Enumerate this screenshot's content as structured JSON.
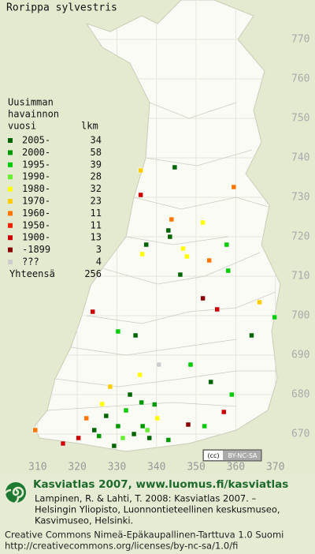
{
  "title": "Rorippa sylvestris",
  "legend": {
    "heading": [
      "Uusimman",
      "havainnon",
      "vuosi"
    ],
    "count_heading": "lkm",
    "rows": [
      {
        "label": "2005-",
        "count": 34,
        "color": "#006400"
      },
      {
        "label": "2000-",
        "count": 58,
        "color": "#009900"
      },
      {
        "label": "1995-",
        "count": 39,
        "color": "#00cc00"
      },
      {
        "label": "1990-",
        "count": 28,
        "color": "#66ee33"
      },
      {
        "label": "1980-",
        "count": 32,
        "color": "#ffff00"
      },
      {
        "label": "1970-",
        "count": 23,
        "color": "#ffcc00"
      },
      {
        "label": "1960-",
        "count": 11,
        "color": "#ff7700"
      },
      {
        "label": "1950-",
        "count": 11,
        "color": "#ee2200"
      },
      {
        "label": "1900-",
        "count": 13,
        "color": "#cc0000"
      },
      {
        "label": "-1899",
        "count": 3,
        "color": "#880000"
      },
      {
        "label": "???",
        "count": 4,
        "color": "#cccccc"
      }
    ],
    "total_label": "Yhteensä",
    "total": 256
  },
  "map": {
    "xlim": [
      300.5,
      380
    ],
    "ylim": [
      660,
      780
    ],
    "xticks": [
      310,
      320,
      330,
      340,
      350,
      360,
      370
    ],
    "yticks": [
      670,
      680,
      690,
      700,
      710,
      720,
      730,
      740,
      750,
      760,
      770
    ]
  },
  "points": [
    {
      "x": 344.6,
      "y": 737.6,
      "period": 0
    },
    {
      "x": 336,
      "y": 736.8,
      "period": 5
    },
    {
      "x": 359.5,
      "y": 732.6,
      "period": 6
    },
    {
      "x": 336,
      "y": 730.6,
      "period": 8
    },
    {
      "x": 343.8,
      "y": 724.4,
      "period": 6
    },
    {
      "x": 343,
      "y": 721.6,
      "period": 0
    },
    {
      "x": 343.4,
      "y": 720,
      "period": 0
    },
    {
      "x": 351.7,
      "y": 723.6,
      "period": 4
    },
    {
      "x": 357.7,
      "y": 718,
      "period": 2
    },
    {
      "x": 337.4,
      "y": 718,
      "period": 0
    },
    {
      "x": 336.4,
      "y": 715.6,
      "period": 4
    },
    {
      "x": 347.7,
      "y": 715,
      "period": 4
    },
    {
      "x": 353.3,
      "y": 714,
      "period": 6
    },
    {
      "x": 346.7,
      "y": 717,
      "period": 4
    },
    {
      "x": 358.1,
      "y": 711.4,
      "period": 2
    },
    {
      "x": 346,
      "y": 710.4,
      "period": 0
    },
    {
      "x": 351.7,
      "y": 704.4,
      "period": 9
    },
    {
      "x": 355.3,
      "y": 701.6,
      "period": 8
    },
    {
      "x": 366,
      "y": 703.4,
      "period": 5
    },
    {
      "x": 369.8,
      "y": 699.6,
      "period": 2
    },
    {
      "x": 364,
      "y": 695,
      "period": 0
    },
    {
      "x": 323.9,
      "y": 701,
      "period": 8
    },
    {
      "x": 330.3,
      "y": 696,
      "period": 2
    },
    {
      "x": 334.7,
      "y": 695,
      "period": 0
    },
    {
      "x": 348.6,
      "y": 687.6,
      "period": 2
    },
    {
      "x": 340.6,
      "y": 687.6,
      "period": 10
    },
    {
      "x": 353.7,
      "y": 683.2,
      "period": 0
    },
    {
      "x": 359,
      "y": 680,
      "period": 2
    },
    {
      "x": 328.3,
      "y": 682,
      "period": 5
    },
    {
      "x": 335.8,
      "y": 685,
      "period": 4
    },
    {
      "x": 333.3,
      "y": 680,
      "period": 0
    },
    {
      "x": 336.2,
      "y": 678,
      "period": 1
    },
    {
      "x": 326.3,
      "y": 677.6,
      "period": 4
    },
    {
      "x": 322.3,
      "y": 674,
      "period": 6
    },
    {
      "x": 320.3,
      "y": 669,
      "period": 8
    },
    {
      "x": 324.3,
      "y": 671,
      "period": 0
    },
    {
      "x": 330.3,
      "y": 672,
      "period": 1
    },
    {
      "x": 334.3,
      "y": 670,
      "period": 0
    },
    {
      "x": 338.2,
      "y": 669,
      "period": 0
    },
    {
      "x": 340.2,
      "y": 674,
      "period": 4
    },
    {
      "x": 348,
      "y": 672.4,
      "period": 9
    },
    {
      "x": 352.1,
      "y": 672,
      "period": 2
    },
    {
      "x": 309.4,
      "y": 671,
      "period": 6
    },
    {
      "x": 316.4,
      "y": 667.6,
      "period": 8
    },
    {
      "x": 329.3,
      "y": 667,
      "period": 0
    },
    {
      "x": 332.3,
      "y": 676,
      "period": 2
    },
    {
      "x": 327.3,
      "y": 674.6,
      "period": 0
    },
    {
      "x": 357,
      "y": 675.6,
      "period": 8
    },
    {
      "x": 336.5,
      "y": 672,
      "period": 1
    },
    {
      "x": 337.7,
      "y": 671,
      "period": 3
    },
    {
      "x": 325.5,
      "y": 669.5,
      "period": 1
    },
    {
      "x": 331.5,
      "y": 669,
      "period": 3
    },
    {
      "x": 339.5,
      "y": 677.5,
      "period": 1
    },
    {
      "x": 343,
      "y": 668.5,
      "period": 1
    }
  ],
  "badge": {
    "cc": "(cc)",
    "text": "BY-NC-SA"
  },
  "footer": {
    "heading": "Kasviatlas 2007, www.luomus.fi/kasviatlas",
    "citation": [
      "Lampinen, R. & Lahti, T. 2008: Kasviatlas 2007. –",
      "Helsingin Yliopisto, Luonnontieteellinen keskusmuseo,",
      "Kasvimuseo, Helsinki."
    ],
    "license": [
      "Creative Commons Nimeä-Epäkaupallinen-Tarttuva 1.0 Suomi",
      "http://creativecommons.org/licenses/by-nc-sa/1.0/fi"
    ]
  }
}
